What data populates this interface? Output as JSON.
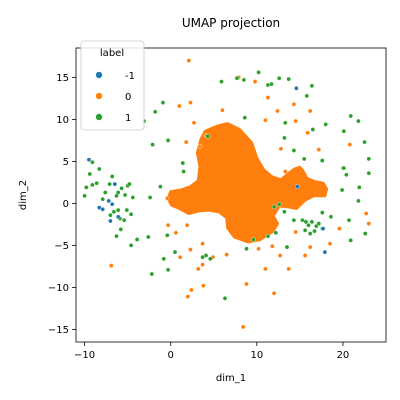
{
  "chart_data": {
    "type": "scatter",
    "title": "UMAP projection",
    "xlabel": "dim_1",
    "ylabel": "dim_2",
    "xlim": [
      -11,
      25
    ],
    "ylim": [
      -16.5,
      18.5
    ],
    "xticks": [
      -10,
      0,
      10,
      20
    ],
    "yticks": [
      -15,
      -10,
      -5,
      0,
      5,
      10,
      15
    ],
    "grid": false,
    "legend": {
      "title": "label",
      "position": "top-left"
    },
    "series": [
      {
        "name": "-1",
        "color": "#1f77b4",
        "points": [
          [
            -9.5,
            5.2
          ],
          [
            -8.3,
            -0.5
          ],
          [
            -7.2,
            0.3
          ],
          [
            -6.8,
            -0.1
          ],
          [
            -7.0,
            -2.1
          ],
          [
            -6.1,
            -1.6
          ],
          [
            -6.5,
            2.3
          ],
          [
            14.6,
            13.7
          ],
          [
            14.7,
            2.0
          ],
          [
            17.7,
            -3.0
          ],
          [
            17.9,
            -5.8
          ],
          [
            -7.9,
            -0.7
          ]
        ]
      },
      {
        "name": "0",
        "color": "#ff7f0e",
        "points": [
          [
            1.0,
            11.6
          ],
          [
            1.8,
            7.3
          ],
          [
            2.7,
            9.6
          ],
          [
            4.1,
            8.1
          ],
          [
            2.3,
            12.0
          ],
          [
            1.9,
            -2.6
          ],
          [
            2.3,
            -5.5
          ],
          [
            3.7,
            -4.8
          ],
          [
            1.1,
            -6.4
          ],
          [
            2.0,
            -11.1
          ],
          [
            2.4,
            -10.3
          ],
          [
            3.7,
            -7.3
          ],
          [
            3.8,
            -9.8
          ],
          [
            6.5,
            -6.1
          ],
          [
            8.4,
            -14.7
          ],
          [
            10.2,
            -5.4
          ],
          [
            11.8,
            -5.1
          ],
          [
            12.0,
            -10.7
          ],
          [
            13.7,
            -7.8
          ],
          [
            14.5,
            -3.4
          ],
          [
            15.6,
            -6.2
          ],
          [
            16.2,
            -5.2
          ],
          [
            14.5,
            9.8
          ],
          [
            11.0,
            9.9
          ],
          [
            11.3,
            12.6
          ],
          [
            12.4,
            11.0
          ],
          [
            14.3,
            11.8
          ],
          [
            12.8,
            6.5
          ],
          [
            15.9,
            8.4
          ],
          [
            17.2,
            6.4
          ],
          [
            20.0,
            4.2
          ],
          [
            20.8,
            7.0
          ],
          [
            22.7,
            -1.2
          ],
          [
            19.6,
            -3.0
          ],
          [
            9.8,
            14.5
          ],
          [
            7.9,
            15.0
          ],
          [
            2.1,
            17.0
          ],
          [
            -0.3,
            -2.6
          ],
          [
            -0.4,
            0.6
          ],
          [
            0.6,
            -3.5
          ],
          [
            3.2,
            -7.8
          ],
          [
            4.9,
            -6.4
          ],
          [
            -6.9,
            -7.4
          ],
          [
            18.5,
            -4.8
          ],
          [
            23.0,
            -2.4
          ],
          [
            12.7,
            -6.2
          ],
          [
            11.0,
            -7.8
          ],
          [
            13.3,
            3.8
          ],
          [
            16.2,
            11.0
          ],
          [
            8.8,
            -9.6
          ],
          [
            6.0,
            11.1
          ],
          [
            3.4,
            6.8
          ]
        ]
      },
      {
        "name": "1",
        "color": "#2ca02c",
        "points": [
          [
            -10.0,
            0.9
          ],
          [
            -9.8,
            1.9
          ],
          [
            -9.1,
            2.2
          ],
          [
            -9.4,
            3.5
          ],
          [
            -8.3,
            4.1
          ],
          [
            -9.1,
            4.9
          ],
          [
            -8.6,
            2.4
          ],
          [
            -7.9,
            0.5
          ],
          [
            -7.6,
            1.3
          ],
          [
            -7.1,
            2.3
          ],
          [
            -6.8,
            3.2
          ],
          [
            -6.3,
            0.9
          ],
          [
            -6.1,
            1.3
          ],
          [
            -5.7,
            1.8
          ],
          [
            -5.3,
            1.0
          ],
          [
            -5.0,
            2.1
          ],
          [
            -4.4,
            0.7
          ],
          [
            -7.0,
            -1.4
          ],
          [
            -6.6,
            -1.0
          ],
          [
            -6.1,
            -0.8
          ],
          [
            -5.9,
            -1.8
          ],
          [
            -5.4,
            -2.0
          ],
          [
            -5.1,
            -0.8
          ],
          [
            -4.6,
            -1.3
          ],
          [
            -4.8,
            2.3
          ],
          [
            -5.8,
            -3.1
          ],
          [
            -6.3,
            -3.9
          ],
          [
            -4.6,
            -5.0
          ],
          [
            -3.9,
            -4.3
          ],
          [
            -2.6,
            -4.0
          ],
          [
            -2.4,
            0.7
          ],
          [
            -1.2,
            2.0
          ],
          [
            -2.1,
            7.0
          ],
          [
            -0.3,
            7.5
          ],
          [
            1.5,
            3.8
          ],
          [
            -0.4,
            -3.8
          ],
          [
            0.5,
            -5.8
          ],
          [
            -0.8,
            -6.6
          ],
          [
            -0.3,
            -7.9
          ],
          [
            -2.2,
            -8.4
          ],
          [
            4.1,
            -6.2
          ],
          [
            4.6,
            -6.6
          ],
          [
            3.7,
            -6.4
          ],
          [
            6.3,
            -11.3
          ],
          [
            8.8,
            -5.4
          ],
          [
            9.6,
            -4.3
          ],
          [
            5.9,
            14.5
          ],
          [
            7.7,
            14.9
          ],
          [
            8.5,
            14.7
          ],
          [
            10.2,
            15.6
          ],
          [
            11.3,
            14.1
          ],
          [
            11.7,
            14.2
          ],
          [
            12.6,
            14.9
          ],
          [
            13.7,
            14.8
          ],
          [
            15.8,
            12.8
          ],
          [
            16.4,
            14.0
          ],
          [
            13.3,
            9.6
          ],
          [
            16.5,
            8.8
          ],
          [
            15.5,
            5.3
          ],
          [
            18.0,
            9.4
          ],
          [
            20.9,
            10.4
          ],
          [
            20.1,
            8.6
          ],
          [
            21.8,
            9.8
          ],
          [
            22.5,
            7.3
          ],
          [
            23.0,
            5.3
          ],
          [
            23.0,
            3.6
          ],
          [
            20.1,
            4.2
          ],
          [
            21.9,
            1.9
          ],
          [
            21.8,
            0.3
          ],
          [
            20.7,
            -2.0
          ],
          [
            22.6,
            -3.6
          ],
          [
            20.9,
            -4.4
          ],
          [
            18.6,
            -1.6
          ],
          [
            17.6,
            -1.1
          ],
          [
            14.3,
            -2.0
          ],
          [
            15.3,
            -2.0
          ],
          [
            15.7,
            -2.2
          ],
          [
            16.0,
            -2.6
          ],
          [
            16.4,
            -2.2
          ],
          [
            16.9,
            -2.7
          ],
          [
            15.6,
            -3.2
          ],
          [
            16.2,
            -3.6
          ],
          [
            16.7,
            -3.3
          ],
          [
            17.2,
            -2.4
          ],
          [
            17.6,
            -3.0
          ],
          [
            13.2,
            -1.0
          ],
          [
            12.6,
            -0.1
          ],
          [
            12.0,
            -0.4
          ],
          [
            12.2,
            -3.5
          ],
          [
            11.3,
            -3.9
          ],
          [
            13.5,
            -5.2
          ],
          [
            13.2,
            7.8
          ],
          [
            14.3,
            6.3
          ],
          [
            17.6,
            5.1
          ],
          [
            19.9,
            1.6
          ],
          [
            20.4,
            3.4
          ],
          [
            -1.8,
            10.9
          ],
          [
            -0.9,
            12.0
          ],
          [
            -3.1,
            9.8
          ],
          [
            8.6,
            10.2
          ],
          [
            4.3,
            8.0
          ],
          [
            1.4,
            4.8
          ]
        ]
      }
    ],
    "cluster": {
      "label": "0",
      "color": "#ff7f0e",
      "outline": [
        [
          0.0,
          1.4
        ],
        [
          1.2,
          1.6
        ],
        [
          2.3,
          2.0
        ],
        [
          3.2,
          2.7
        ],
        [
          3.4,
          4.4
        ],
        [
          3.1,
          6.0
        ],
        [
          3.5,
          7.6
        ],
        [
          4.0,
          8.6
        ],
        [
          5.4,
          9.2
        ],
        [
          6.6,
          9.5
        ],
        [
          8.0,
          8.8
        ],
        [
          9.4,
          7.2
        ],
        [
          10.0,
          5.4
        ],
        [
          10.8,
          4.0
        ],
        [
          11.7,
          3.2
        ],
        [
          12.8,
          2.8
        ],
        [
          13.6,
          3.5
        ],
        [
          14.4,
          4.1
        ],
        [
          15.0,
          4.3
        ],
        [
          15.4,
          3.8
        ],
        [
          15.8,
          3.0
        ],
        [
          16.7,
          2.6
        ],
        [
          17.7,
          2.4
        ],
        [
          18.1,
          1.7
        ],
        [
          17.9,
          0.9
        ],
        [
          16.6,
          0.9
        ],
        [
          15.6,
          0.4
        ],
        [
          14.6,
          -0.6
        ],
        [
          13.6,
          -0.4
        ],
        [
          12.6,
          -0.3
        ],
        [
          11.9,
          -1.5
        ],
        [
          12.4,
          -2.4
        ],
        [
          11.9,
          -3.3
        ],
        [
          10.4,
          -4.3
        ],
        [
          9.0,
          -4.6
        ],
        [
          7.4,
          -4.0
        ],
        [
          6.6,
          -2.9
        ],
        [
          6.5,
          -1.7
        ],
        [
          5.6,
          -1.0
        ],
        [
          4.4,
          -0.8
        ],
        [
          3.2,
          -0.9
        ],
        [
          2.1,
          -1.2
        ],
        [
          1.0,
          -0.6
        ],
        [
          0.1,
          -0.2
        ],
        [
          -0.3,
          0.6
        ]
      ]
    }
  }
}
